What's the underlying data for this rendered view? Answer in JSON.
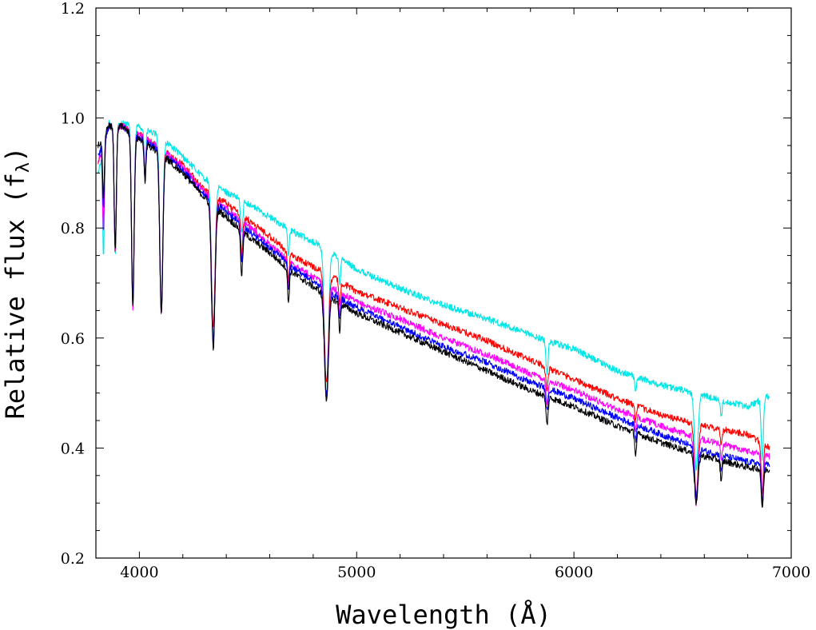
{
  "chart_data": {
    "type": "line",
    "title": "",
    "xlabel": "Wavelength (Å)",
    "ylabel_main": "Relative flux (f",
    "ylabel_sub": "λ",
    "ylabel_close": ")",
    "xlim": [
      3800,
      7000
    ],
    "ylim": [
      0.2,
      1.2
    ],
    "xticks": [
      4000,
      5000,
      6000,
      7000
    ],
    "xtick_labels": [
      "4000",
      "5000",
      "6000",
      "7000"
    ],
    "yticks": [
      0.2,
      0.4,
      0.6,
      0.8,
      1.0,
      1.2
    ],
    "ytick_labels": [
      "0.2",
      "0.4",
      "0.6",
      "0.8",
      "1.0",
      "1.2"
    ],
    "grid": false,
    "absorption_lines": [
      {
        "center": 3835,
        "width": 4
      },
      {
        "center": 3889,
        "width": 5
      },
      {
        "center": 3970,
        "width": 6
      },
      {
        "center": 4026,
        "width": 4
      },
      {
        "center": 4101,
        "width": 7
      },
      {
        "center": 4340,
        "width": 8
      },
      {
        "center": 4471,
        "width": 5
      },
      {
        "center": 4686,
        "width": 4
      },
      {
        "center": 4861,
        "width": 9
      },
      {
        "center": 4922,
        "width": 4
      },
      {
        "center": 5876,
        "width": 5
      },
      {
        "center": 6284,
        "width": 4
      },
      {
        "center": 6563,
        "width": 8
      },
      {
        "center": 6678,
        "width": 4
      },
      {
        "center": 6867,
        "width": 5
      }
    ],
    "series": [
      {
        "name": "cyan",
        "color": "#00e5e5",
        "continuum": [
          [
            3810,
            0.9
          ],
          [
            3860,
            0.99
          ],
          [
            3920,
            0.99
          ],
          [
            4000,
            0.985
          ],
          [
            4100,
            0.965
          ],
          [
            4200,
            0.93
          ],
          [
            4300,
            0.89
          ],
          [
            4400,
            0.865
          ],
          [
            4500,
            0.845
          ],
          [
            4600,
            0.82
          ],
          [
            4700,
            0.795
          ],
          [
            4850,
            0.765
          ],
          [
            5000,
            0.725
          ],
          [
            5200,
            0.69
          ],
          [
            5400,
            0.66
          ],
          [
            5600,
            0.635
          ],
          [
            5800,
            0.605
          ],
          [
            6000,
            0.58
          ],
          [
            6200,
            0.54
          ],
          [
            6400,
            0.515
          ],
          [
            6600,
            0.495
          ],
          [
            6800,
            0.475
          ],
          [
            6900,
            0.495
          ]
        ],
        "line_depths": [
          0.2,
          0.24,
          0.33,
          0.08,
          0.31,
          0.28,
          0.06,
          0.05,
          0.27,
          0.05,
          0.06,
          0.03,
          0.14,
          0.03,
          0.11
        ]
      },
      {
        "name": "red",
        "color": "#ff0000",
        "continuum": [
          [
            3810,
            0.92
          ],
          [
            3860,
            0.985
          ],
          [
            3920,
            0.985
          ],
          [
            4000,
            0.97
          ],
          [
            4100,
            0.945
          ],
          [
            4200,
            0.915
          ],
          [
            4300,
            0.87
          ],
          [
            4400,
            0.845
          ],
          [
            4500,
            0.815
          ],
          [
            4600,
            0.785
          ],
          [
            4700,
            0.75
          ],
          [
            4850,
            0.72
          ],
          [
            5000,
            0.685
          ],
          [
            5200,
            0.655
          ],
          [
            5400,
            0.625
          ],
          [
            5600,
            0.595
          ],
          [
            5800,
            0.56
          ],
          [
            6000,
            0.525
          ],
          [
            6200,
            0.49
          ],
          [
            6400,
            0.46
          ],
          [
            6600,
            0.44
          ],
          [
            6800,
            0.425
          ],
          [
            6900,
            0.4
          ]
        ],
        "line_depths": [
          0.15,
          0.23,
          0.31,
          0.07,
          0.29,
          0.24,
          0.07,
          0.05,
          0.2,
          0.04,
          0.04,
          0.03,
          0.13,
          0.03,
          0.09
        ]
      },
      {
        "name": "magenta",
        "color": "#ff00ff",
        "continuum": [
          [
            3810,
            0.92
          ],
          [
            3860,
            0.985
          ],
          [
            3920,
            0.985
          ],
          [
            4000,
            0.97
          ],
          [
            4100,
            0.945
          ],
          [
            4200,
            0.91
          ],
          [
            4300,
            0.865
          ],
          [
            4400,
            0.835
          ],
          [
            4500,
            0.805
          ],
          [
            4600,
            0.77
          ],
          [
            4700,
            0.735
          ],
          [
            4850,
            0.7
          ],
          [
            5000,
            0.665
          ],
          [
            5200,
            0.635
          ],
          [
            5400,
            0.6
          ],
          [
            5600,
            0.57
          ],
          [
            5800,
            0.535
          ],
          [
            6000,
            0.505
          ],
          [
            6200,
            0.47
          ],
          [
            6400,
            0.44
          ],
          [
            6600,
            0.415
          ],
          [
            6800,
            0.395
          ],
          [
            6900,
            0.385
          ]
        ],
        "line_depths": [
          0.16,
          0.23,
          0.32,
          0.07,
          0.3,
          0.26,
          0.07,
          0.05,
          0.21,
          0.04,
          0.04,
          0.03,
          0.12,
          0.03,
          0.08
        ]
      },
      {
        "name": "blue",
        "color": "#0000ff",
        "continuum": [
          [
            3810,
            0.93
          ],
          [
            3860,
            0.985
          ],
          [
            3920,
            0.985
          ],
          [
            4000,
            0.965
          ],
          [
            4100,
            0.94
          ],
          [
            4200,
            0.905
          ],
          [
            4300,
            0.86
          ],
          [
            4400,
            0.83
          ],
          [
            4500,
            0.795
          ],
          [
            4600,
            0.765
          ],
          [
            4700,
            0.73
          ],
          [
            4850,
            0.69
          ],
          [
            5000,
            0.655
          ],
          [
            5200,
            0.62
          ],
          [
            5400,
            0.585
          ],
          [
            5600,
            0.555
          ],
          [
            5800,
            0.52
          ],
          [
            6000,
            0.49
          ],
          [
            6200,
            0.455
          ],
          [
            6400,
            0.425
          ],
          [
            6600,
            0.395
          ],
          [
            6800,
            0.375
          ],
          [
            6900,
            0.37
          ]
        ],
        "line_depths": [
          0.12,
          0.22,
          0.3,
          0.07,
          0.29,
          0.26,
          0.07,
          0.05,
          0.19,
          0.04,
          0.04,
          0.03,
          0.09,
          0.03,
          0.07
        ]
      },
      {
        "name": "black",
        "color": "#000000",
        "continuum": [
          [
            3810,
            0.95
          ],
          [
            3860,
            0.985
          ],
          [
            3920,
            0.985
          ],
          [
            4000,
            0.96
          ],
          [
            4100,
            0.935
          ],
          [
            4200,
            0.9
          ],
          [
            4300,
            0.855
          ],
          [
            4400,
            0.82
          ],
          [
            4500,
            0.785
          ],
          [
            4600,
            0.755
          ],
          [
            4700,
            0.72
          ],
          [
            4850,
            0.68
          ],
          [
            5000,
            0.645
          ],
          [
            5200,
            0.61
          ],
          [
            5400,
            0.575
          ],
          [
            5600,
            0.54
          ],
          [
            5800,
            0.505
          ],
          [
            6000,
            0.475
          ],
          [
            6200,
            0.44
          ],
          [
            6400,
            0.41
          ],
          [
            6600,
            0.385
          ],
          [
            6800,
            0.365
          ],
          [
            6900,
            0.36
          ]
        ],
        "line_depths": [
          0.12,
          0.22,
          0.31,
          0.07,
          0.29,
          0.26,
          0.08,
          0.06,
          0.19,
          0.05,
          0.05,
          0.04,
          0.09,
          0.04,
          0.07
        ]
      }
    ]
  }
}
